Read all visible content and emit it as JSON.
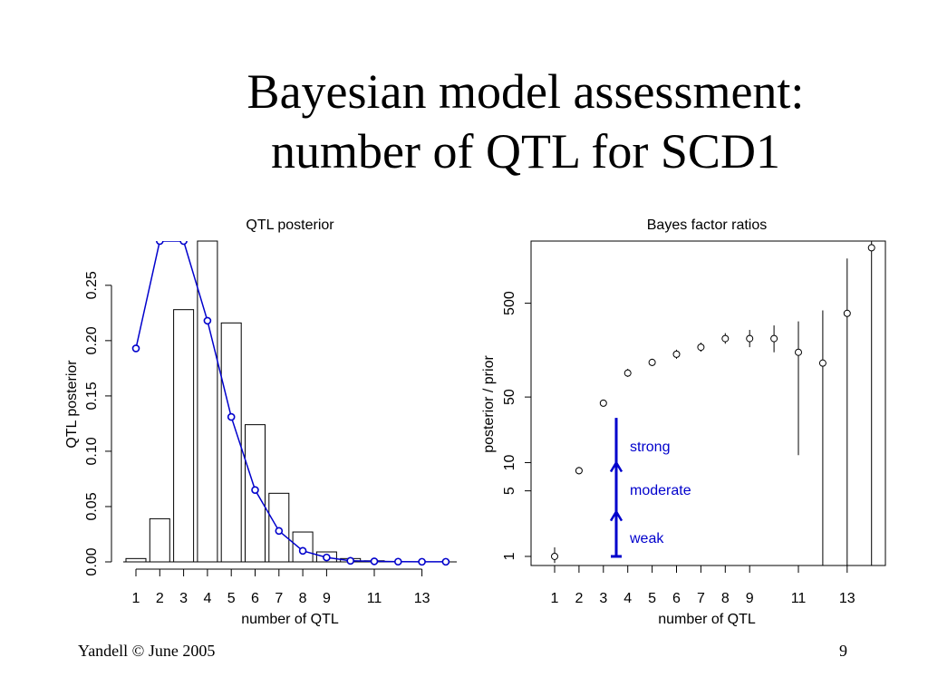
{
  "slide": {
    "title_line1": "Bayesian model assessment:",
    "title_line2": "number of QTL for SCD1",
    "footer_left": "Yandell © June 2005",
    "page_number": "9"
  },
  "colors": {
    "posterior_line": "#0000cc",
    "bars": "#000000",
    "annotation": "#0000cc"
  },
  "chart_data": [
    {
      "type": "bar",
      "title": "QTL posterior",
      "xlabel": "number of QTL",
      "ylabel": "QTL posterior",
      "x": [
        1,
        2,
        3,
        4,
        5,
        6,
        7,
        8,
        9,
        10,
        11,
        12,
        13,
        14
      ],
      "x_tick_labels": [
        "1",
        "2",
        "3",
        "4",
        "5",
        "6",
        "7",
        "8",
        "9",
        "11",
        "13"
      ],
      "x_tick_values": [
        1,
        2,
        3,
        4,
        5,
        6,
        7,
        8,
        9,
        11,
        13
      ],
      "ylim": [
        0,
        0.29
      ],
      "y_ticks": [
        "0.00",
        "0.05",
        "0.10",
        "0.15",
        "0.20",
        "0.25"
      ],
      "series": [
        {
          "kind": "bar",
          "values": [
            0.003,
            0.039,
            0.228,
            0.29,
            0.216,
            0.124,
            0.062,
            0.027,
            0.009,
            0.003,
            0.001,
            0,
            0,
            0
          ]
        },
        {
          "kind": "line-points",
          "values": [
            0.193,
            0.29,
            0.29,
            0.218,
            0.131,
            0.065,
            0.028,
            0.01,
            0.004,
            0.001,
            0.0005,
            0.0002,
            0.0001,
            0.0001
          ]
        }
      ]
    },
    {
      "type": "scatter",
      "title": "Bayes factor ratios",
      "xlabel": "number of QTL",
      "ylabel": "posterior / prior",
      "log_y": true,
      "x": [
        1,
        2,
        3,
        4,
        5,
        6,
        7,
        8,
        9,
        10,
        11,
        12,
        13,
        14
      ],
      "x_tick_labels": [
        "1",
        "2",
        "3",
        "4",
        "5",
        "6",
        "7",
        "8",
        "9",
        "11",
        "13"
      ],
      "x_tick_values": [
        1,
        2,
        3,
        4,
        5,
        6,
        7,
        8,
        9,
        11,
        13
      ],
      "y_tick_labels": [
        "1",
        "5",
        "10",
        "50",
        "500"
      ],
      "y_tick_values": [
        1,
        5,
        10,
        50,
        500
      ],
      "ylim": [
        0.8,
        2300
      ],
      "points": [
        {
          "x": 1,
          "y": 1.0,
          "lo": 0.85,
          "hi": 1.25
        },
        {
          "x": 2,
          "y": 8.2,
          "lo": 7.5,
          "hi": 9.0
        },
        {
          "x": 3,
          "y": 43,
          "lo": 40,
          "hi": 47
        },
        {
          "x": 4,
          "y": 90,
          "lo": 82,
          "hi": 100
        },
        {
          "x": 5,
          "y": 117,
          "lo": 107,
          "hi": 128
        },
        {
          "x": 6,
          "y": 143,
          "lo": 128,
          "hi": 160
        },
        {
          "x": 7,
          "y": 170,
          "lo": 152,
          "hi": 190
        },
        {
          "x": 8,
          "y": 210,
          "lo": 185,
          "hi": 240
        },
        {
          "x": 9,
          "y": 210,
          "lo": 170,
          "hi": 260
        },
        {
          "x": 10,
          "y": 210,
          "lo": 150,
          "hi": 290
        },
        {
          "x": 11,
          "y": 150,
          "lo": 12,
          "hi": 320
        },
        {
          "x": 12,
          "y": 115,
          "lo": 0.5,
          "hi": 420
        },
        {
          "x": 13,
          "y": 390,
          "lo": 0.5,
          "hi": 1500
        },
        {
          "x": 14,
          "y": 1950,
          "lo": 0.5,
          "hi": 3000
        }
      ],
      "annotations": [
        {
          "label": "strong",
          "from": 10,
          "to": 30
        },
        {
          "label": "moderate",
          "from": 3,
          "to": 10
        },
        {
          "label": "weak",
          "from": 1,
          "to": 3
        }
      ]
    }
  ]
}
